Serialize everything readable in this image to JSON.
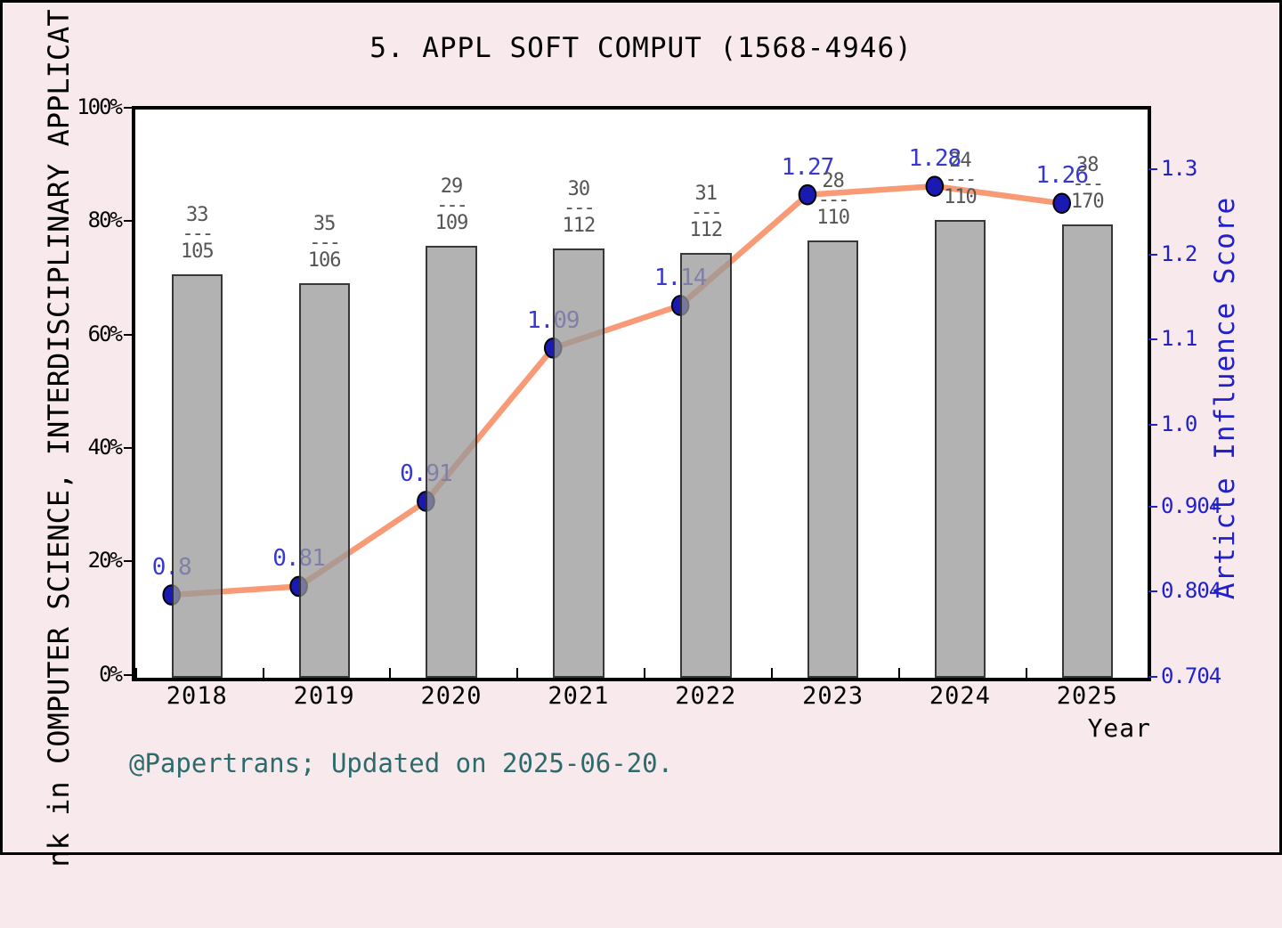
{
  "title": "5. APPL SOFT COMPUT (1568-4946)",
  "footer": "@Papertrans; Updated on 2025-06-20.",
  "axes": {
    "x_label": "Year",
    "left_label_visible": "nk in COMPUTER SCIENCE, INTERDISCIPLINARY APPLICAT",
    "right_label": "Article Influence Score",
    "left_ticks": [
      {
        "pct": 100,
        "label": "100%"
      },
      {
        "pct": 80,
        "label": "80%"
      },
      {
        "pct": 60,
        "label": "60%"
      },
      {
        "pct": 40,
        "label": "40%"
      },
      {
        "pct": 20,
        "label": "20%"
      },
      {
        "pct": 0,
        "label": "0%"
      }
    ],
    "right_ticks": [
      {
        "value": 1.3,
        "label": "1.3"
      },
      {
        "value": 1.2,
        "label": "1.2"
      },
      {
        "value": 1.1,
        "label": "1.1"
      },
      {
        "value": 1.0,
        "label": "1.0"
      },
      {
        "value": 0.904,
        "label": "0.904"
      },
      {
        "value": 0.804,
        "label": "0.804"
      },
      {
        "value": 0.704,
        "label": "0.704"
      }
    ]
  },
  "chart_data": {
    "type": "bar+line combo",
    "title": "5. APPL SOFT COMPUT (1568-4946)",
    "categories": [
      "2018",
      "2019",
      "2020",
      "2021",
      "2022",
      "2023",
      "2024",
      "2025"
    ],
    "xlabel": "Year",
    "ylabel_left_visible": "nk in COMPUTER SCIENCE, INTERDISCIPLINARY APPLICAT",
    "ylabel_right": "Article Influence Score",
    "left_axis_range_pct": [
      0,
      100
    ],
    "right_axis_tick_values": [
      1.3,
      1.2,
      1.1,
      1.0,
      0.904,
      0.804,
      0.704
    ],
    "grid": false,
    "legend": "none",
    "fraction_separator": "---",
    "series": [
      {
        "name": "Journal rank (rank/total) shown as bars with fraction labels",
        "type": "bar",
        "rank": [
          33,
          35,
          29,
          30,
          31,
          28,
          24,
          38
        ],
        "total": [
          105,
          106,
          109,
          112,
          112,
          110,
          110,
          170
        ],
        "bar_top_pct": [
          70.6,
          69.1,
          75.6,
          75.2,
          74.4,
          76.6,
          80.2,
          79.5
        ]
      },
      {
        "name": "Article Influence Score",
        "type": "line",
        "values": [
          0.8,
          0.81,
          0.91,
          1.09,
          1.14,
          1.27,
          1.28,
          1.26
        ],
        "labels": [
          "0.8",
          "0.81",
          "0.91",
          "1.09",
          "1.14",
          "1.27",
          "1.28",
          "1.26"
        ]
      }
    ]
  },
  "colors": {
    "background": "#f8e9ed",
    "plot_background": "#ffffff",
    "bar_fill": "rgba(152,152,152,0.75)",
    "bar_border": "rgba(25,25,25,0.8)",
    "line": "#f89a76",
    "point_fill": "#1a1ab2",
    "point_stroke": "#000000",
    "value_label": "#3737d4",
    "right_axis": "#2121cb",
    "fraction_label": "#555555",
    "footer": "#2d6b6b",
    "text": "#000000"
  }
}
